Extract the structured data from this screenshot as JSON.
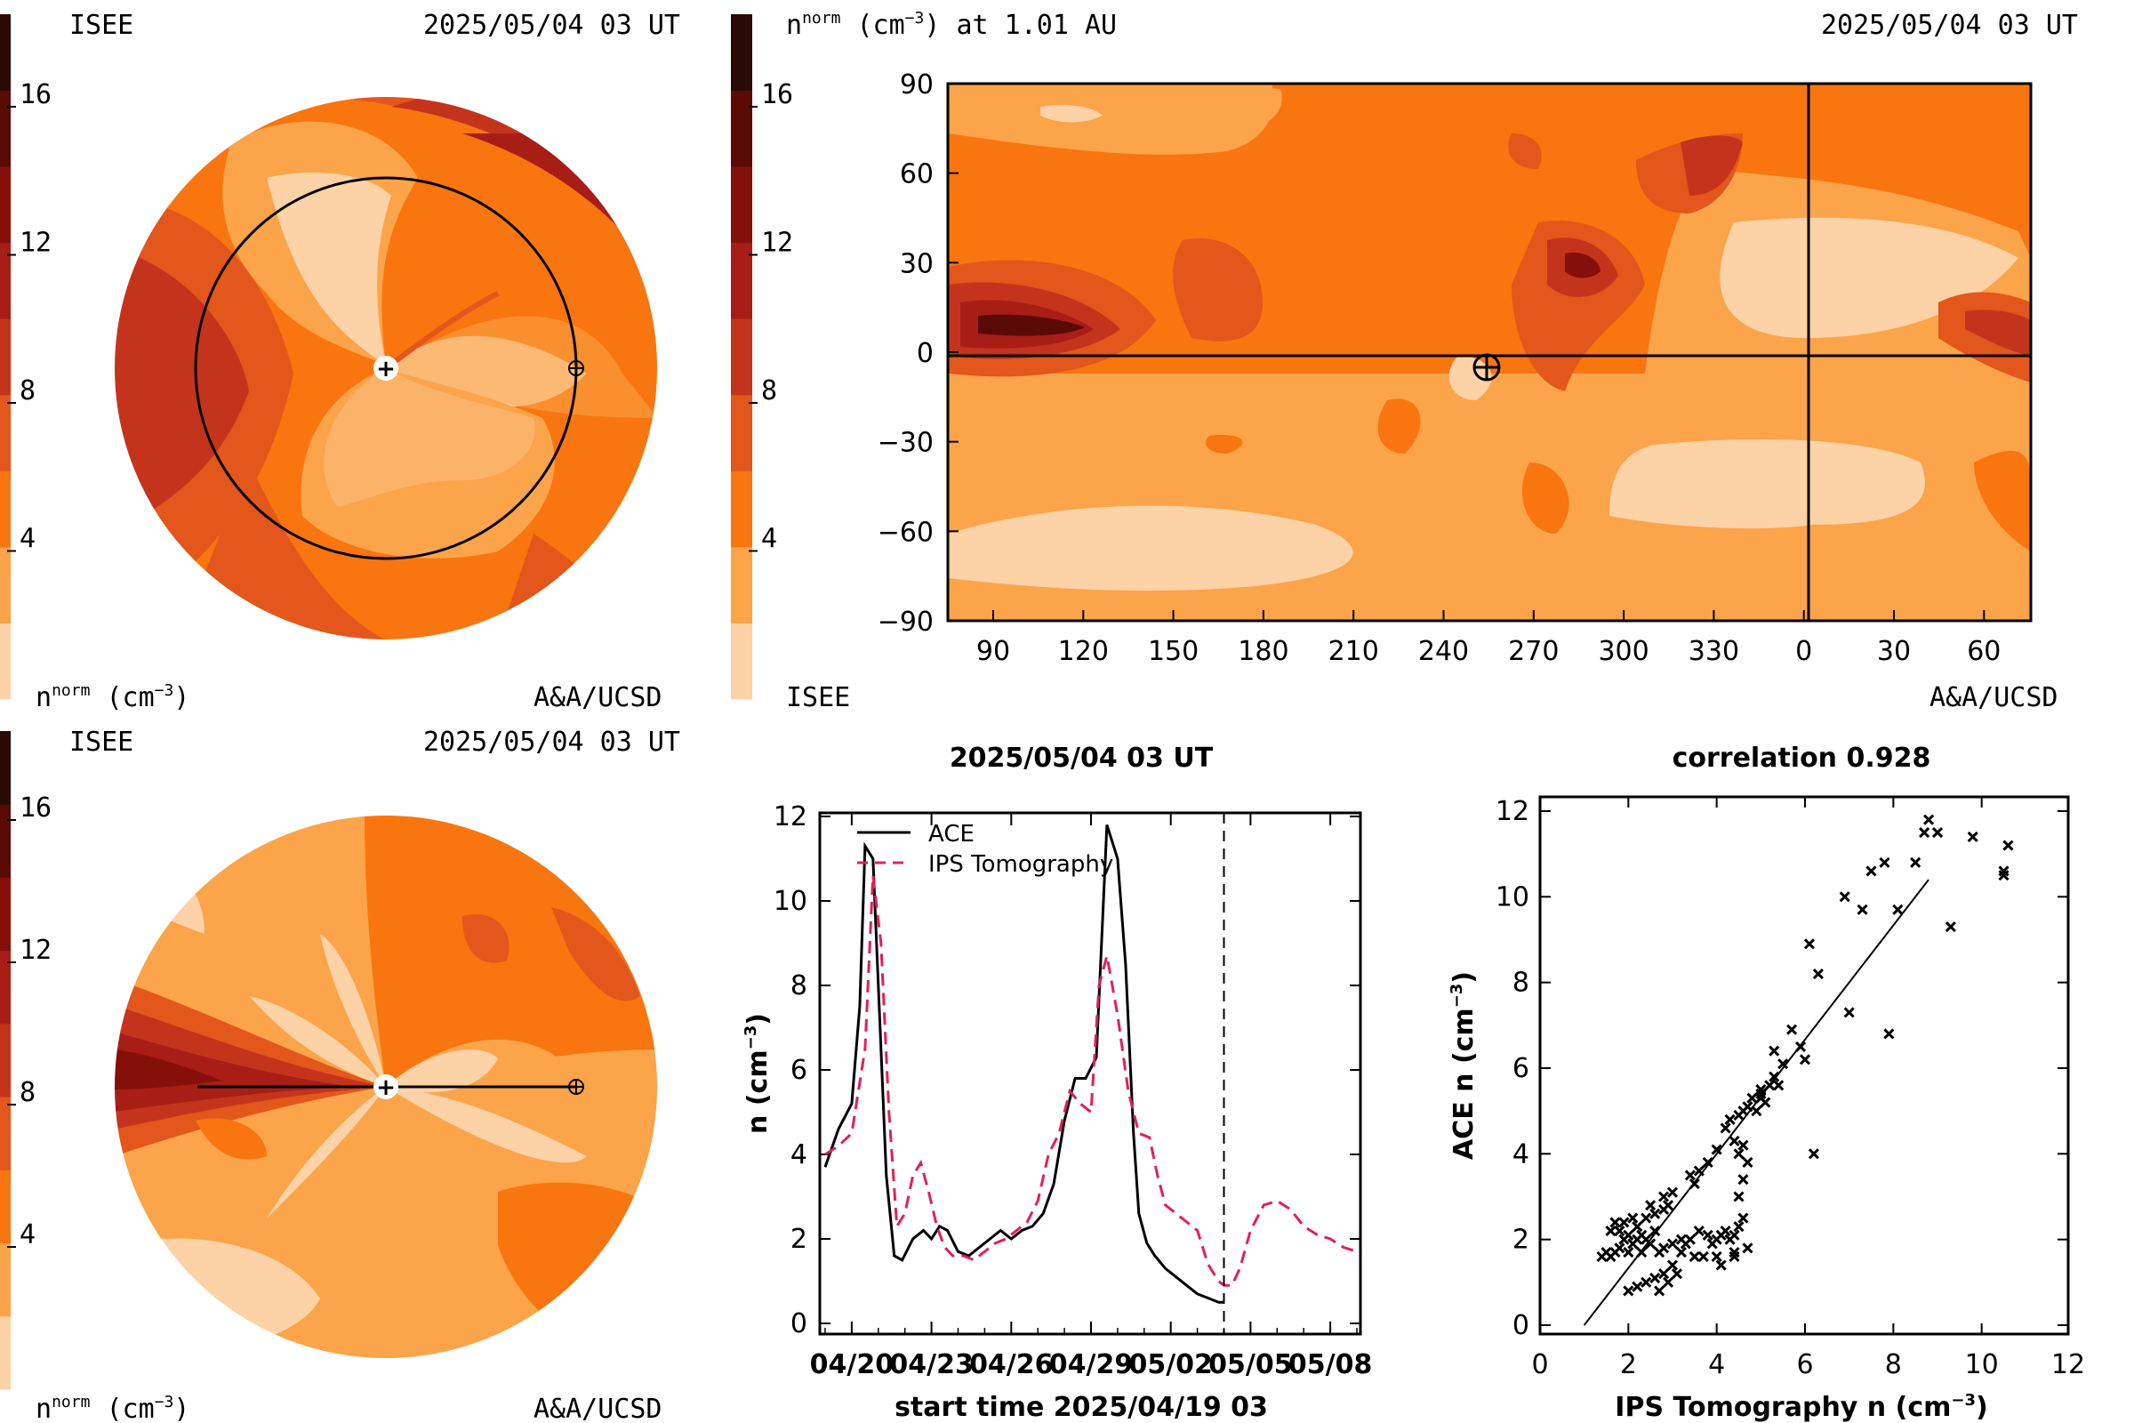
{
  "palette": [
    "#fcd2a6",
    "#fba44a",
    "#f9750f",
    "#e3561c",
    "#c4341c",
    "#a91d17",
    "#851009",
    "#5a0a05",
    "#2a0a04"
  ],
  "colorbar_ticks": [
    "4",
    "8",
    "12",
    "16"
  ],
  "panel_tl": {
    "left_label": "ISEE",
    "right_label": "2025/05/04 03 UT",
    "bottom_left": "n",
    "bottom_sup": "norm",
    "bottom_units": "(cm",
    "bottom_units_sup": "−3",
    "bottom_units_end": ")",
    "bottom_right": "A&A/UCSD",
    "center_marker": "+"
  },
  "panel_bl": {
    "left_label": "ISEE",
    "right_label": "2025/05/04 03 UT",
    "bottom_left": "n",
    "bottom_sup": "norm",
    "bottom_units": "(cm",
    "bottom_units_sup": "−3",
    "bottom_units_end": ")",
    "bottom_right": "A&A/UCSD",
    "center_marker": "+"
  },
  "panel_map": {
    "title_n": "n",
    "title_sup": "norm",
    "title_units": " (cm",
    "title_units_sup": "−3",
    "title_end": ") at 1.01 AU",
    "date": "2025/05/04 03 UT",
    "left_label": "ISEE",
    "right_label": "A&A/UCSD",
    "y_ticks": [
      "90",
      "60",
      "30",
      "0",
      "−30",
      "−60",
      "−90"
    ],
    "x_ticks": [
      "90",
      "120",
      "150",
      "180",
      "210",
      "240",
      "270",
      "300",
      "330",
      "0",
      "30",
      "60"
    ]
  },
  "chart_data": [
    {
      "type": "line",
      "title": "2025/05/04 03 UT",
      "xlabel": "start time 2025/04/19 03",
      "ylabel": "n (cm⁻³)",
      "ylabel_main": "n (cm",
      "ylabel_sup": "−3",
      "ylabel_end": ")",
      "x_tick_labels": [
        "04/20",
        "04/23",
        "04/26",
        "04/29",
        "05/02",
        "05/05",
        "05/08"
      ],
      "y_tick_labels": [
        "0",
        "2",
        "4",
        "6",
        "8",
        "10",
        "12"
      ],
      "ylim": [
        0,
        12
      ],
      "x_unit": "days since start",
      "xlim": [
        0,
        20
      ],
      "now_marker_day": 15.0,
      "series": [
        {
          "name": "ACE",
          "color": "#000000",
          "dash": "solid",
          "x": [
            0,
            0.5,
            1.0,
            1.3,
            1.5,
            1.8,
            2.0,
            2.3,
            2.6,
            2.9,
            3.3,
            3.7,
            4.0,
            4.3,
            4.6,
            5.0,
            5.4,
            5.8,
            6.2,
            6.6,
            7.0,
            7.4,
            7.8,
            8.2,
            8.6,
            9.0,
            9.4,
            9.8,
            10.2,
            10.6,
            11.0,
            11.3,
            11.6,
            11.8,
            12.1,
            12.4,
            12.8,
            13.2,
            13.6,
            14.0,
            14.4,
            14.8,
            15.0
          ],
          "y": [
            3.7,
            4.6,
            5.2,
            7.5,
            11.3,
            11.0,
            8.0,
            3.5,
            1.6,
            1.5,
            2.0,
            2.2,
            2.0,
            2.3,
            2.2,
            1.7,
            1.6,
            1.8,
            2.0,
            2.2,
            2.0,
            2.2,
            2.3,
            2.6,
            3.3,
            4.8,
            5.8,
            5.8,
            6.3,
            11.8,
            11.0,
            8.5,
            4.5,
            2.6,
            1.9,
            1.6,
            1.3,
            1.1,
            0.9,
            0.7,
            0.6,
            0.5,
            0.5
          ]
        },
        {
          "name": "IPS Tomography",
          "color": "#e0205a",
          "dash": "dashed",
          "x": [
            0,
            0.5,
            1.0,
            1.5,
            1.8,
            2.1,
            2.4,
            2.7,
            3.0,
            3.3,
            3.6,
            3.9,
            4.2,
            4.5,
            4.8,
            5.2,
            5.6,
            6.0,
            6.4,
            6.8,
            7.2,
            7.6,
            8.0,
            8.4,
            8.8,
            9.2,
            9.6,
            10.0,
            10.3,
            10.6,
            11.0,
            11.4,
            11.8,
            12.2,
            12.5,
            12.8,
            13.2,
            13.6,
            14.0,
            14.4,
            14.8,
            15.0,
            15.3,
            15.6,
            16.0,
            16.5,
            17.0,
            17.5,
            18.0,
            18.5,
            19.0,
            19.5,
            20.0
          ],
          "y": [
            4.0,
            4.2,
            4.5,
            6.5,
            10.6,
            9.0,
            5.0,
            2.3,
            2.6,
            3.5,
            3.8,
            3.1,
            2.3,
            1.8,
            1.6,
            1.6,
            1.5,
            1.7,
            1.9,
            2.0,
            2.2,
            2.4,
            2.9,
            4.0,
            4.5,
            5.5,
            5.2,
            5.0,
            8.0,
            8.7,
            7.3,
            5.5,
            4.5,
            4.4,
            3.5,
            2.8,
            2.6,
            2.4,
            2.2,
            1.4,
            1.0,
            0.9,
            0.9,
            1.3,
            2.2,
            2.8,
            2.9,
            2.7,
            2.3,
            2.1,
            2.0,
            1.8,
            1.7
          ]
        }
      ]
    },
    {
      "type": "scatter",
      "title": "correlation 0.928",
      "xlabel": "IPS Tomography n (cm⁻³)",
      "xlabel_main": "IPS Tomography n (cm",
      "xlabel_sup": "−3",
      "xlabel_end": ")",
      "ylabel": "ACE n (cm⁻³)",
      "ylabel_main": "ACE n (cm",
      "ylabel_sup": "−3",
      "ylabel_end": ")",
      "x_tick_labels": [
        "0",
        "2",
        "4",
        "6",
        "8",
        "10",
        "12"
      ],
      "y_tick_labels": [
        "0",
        "2",
        "4",
        "6",
        "8",
        "10",
        "12"
      ],
      "xlim": [
        0,
        12
      ],
      "ylim": [
        0,
        12
      ],
      "fit_line": {
        "x": [
          1.0,
          8.8
        ],
        "y": [
          0.0,
          10.4
        ]
      },
      "points": [
        [
          1.4,
          1.6
        ],
        [
          1.5,
          1.7
        ],
        [
          1.6,
          1.6
        ],
        [
          1.7,
          1.7
        ],
        [
          1.8,
          1.8
        ],
        [
          1.8,
          2.2
        ],
        [
          1.9,
          2.4
        ],
        [
          2.0,
          2.1
        ],
        [
          2.0,
          1.7
        ],
        [
          2.1,
          1.9
        ],
        [
          2.2,
          2.0
        ],
        [
          2.2,
          2.3
        ],
        [
          2.3,
          2.1
        ],
        [
          2.4,
          2.0
        ],
        [
          2.4,
          2.5
        ],
        [
          2.5,
          1.9
        ],
        [
          2.6,
          2.2
        ],
        [
          2.6,
          2.6
        ],
        [
          2.8,
          2.7
        ],
        [
          2.7,
          1.7
        ],
        [
          2.8,
          1.8
        ],
        [
          3.0,
          1.9
        ],
        [
          3.2,
          2.0
        ],
        [
          3.4,
          2.0
        ],
        [
          3.6,
          2.2
        ],
        [
          3.8,
          2.1
        ],
        [
          3.9,
          1.9
        ],
        [
          4.0,
          2.0
        ],
        [
          4.1,
          2.1
        ],
        [
          4.2,
          2.2
        ],
        [
          4.3,
          2.0
        ],
        [
          4.4,
          2.1
        ],
        [
          4.5,
          2.3
        ],
        [
          4.6,
          2.5
        ],
        [
          4.5,
          3.0
        ],
        [
          4.6,
          3.4
        ],
        [
          4.7,
          3.8
        ],
        [
          4.6,
          4.2
        ],
        [
          4.5,
          4.0
        ],
        [
          4.4,
          4.3
        ],
        [
          4.2,
          4.6
        ],
        [
          4.3,
          4.8
        ],
        [
          4.5,
          4.9
        ],
        [
          4.6,
          5.0
        ],
        [
          4.7,
          5.1
        ],
        [
          4.8,
          5.3
        ],
        [
          5.0,
          5.5
        ],
        [
          5.1,
          5.2
        ],
        [
          5.2,
          5.6
        ],
        [
          5.3,
          5.8
        ],
        [
          5.5,
          6.1
        ],
        [
          5.7,
          6.9
        ],
        [
          5.3,
          6.4
        ],
        [
          5.0,
          5.4
        ],
        [
          4.9,
          5.0
        ],
        [
          3.0,
          3.1
        ],
        [
          2.5,
          2.8
        ],
        [
          2.8,
          3.0
        ],
        [
          3.4,
          3.5
        ],
        [
          3.6,
          3.6
        ],
        [
          3.8,
          3.8
        ],
        [
          4.0,
          4.1
        ],
        [
          3.2,
          1.7
        ],
        [
          3.0,
          1.4
        ],
        [
          2.8,
          1.2
        ],
        [
          2.6,
          1.1
        ],
        [
          2.4,
          1.0
        ],
        [
          2.2,
          0.9
        ],
        [
          2.0,
          0.8
        ],
        [
          2.7,
          0.8
        ],
        [
          2.9,
          1.0
        ],
        [
          3.1,
          1.2
        ],
        [
          3.5,
          1.6
        ],
        [
          4.0,
          1.6
        ],
        [
          4.4,
          1.7
        ],
        [
          4.7,
          1.8
        ],
        [
          6.2,
          4.0
        ],
        [
          6.3,
          8.2
        ],
        [
          6.1,
          8.9
        ],
        [
          7.0,
          7.3
        ],
        [
          7.3,
          9.7
        ],
        [
          7.9,
          6.8
        ],
        [
          7.5,
          10.6
        ],
        [
          7.8,
          10.8
        ],
        [
          8.1,
          9.7
        ],
        [
          8.5,
          10.8
        ],
        [
          8.7,
          11.5
        ],
        [
          8.8,
          11.8
        ],
        [
          9.0,
          11.5
        ],
        [
          9.3,
          9.3
        ],
        [
          9.8,
          11.4
        ],
        [
          10.5,
          10.5
        ],
        [
          10.5,
          10.6
        ],
        [
          10.6,
          11.2
        ],
        [
          6.9,
          10.0
        ],
        [
          2.1,
          2.5
        ],
        [
          1.7,
          2.4
        ],
        [
          1.9,
          2.0
        ],
        [
          2.3,
          1.7
        ],
        [
          3.3,
          1.9
        ],
        [
          3.7,
          1.6
        ],
        [
          4.1,
          1.4
        ],
        [
          4.4,
          1.6
        ],
        [
          5.0,
          5.3
        ],
        [
          5.4,
          5.6
        ],
        [
          5.9,
          6.5
        ],
        [
          6.0,
          6.2
        ],
        [
          3.5,
          3.3
        ],
        [
          2.9,
          2.8
        ],
        [
          1.6,
          2.2
        ]
      ]
    }
  ],
  "legend": {
    "ace": "ACE",
    "ips": "IPS Tomography"
  }
}
